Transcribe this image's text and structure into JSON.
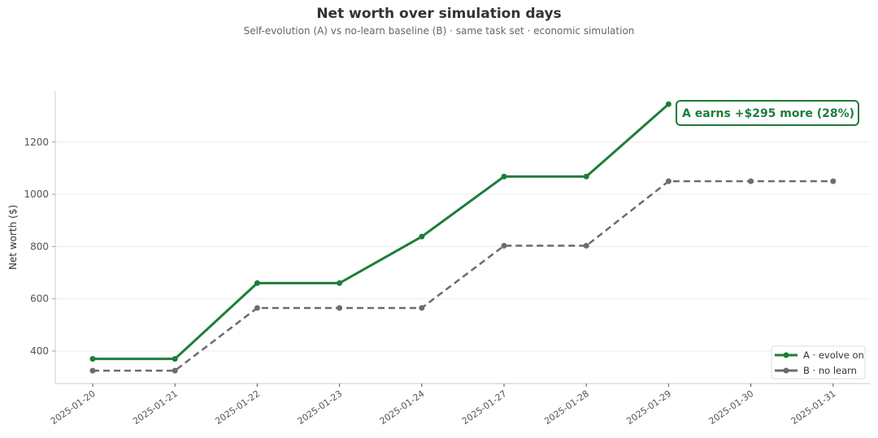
{
  "chart_data": {
    "type": "line",
    "title": "Net worth over simulation days",
    "subtitle": "Self-evolution (A) vs no-learn baseline (B) · same task set · economic simulation",
    "xlabel": "",
    "ylabel": "Net worth ($)",
    "categories": [
      "2025-01-20",
      "2025-01-21",
      "2025-01-22",
      "2025-01-23",
      "2025-01-24",
      "2025-01-27",
      "2025-01-28",
      "2025-01-29",
      "2025-01-30",
      "2025-01-31"
    ],
    "ylim": [
      275,
      1390
    ],
    "yticks": [
      400,
      600,
      800,
      1000,
      1200
    ],
    "grid": "horizontal",
    "legend_position": "bottom-right",
    "series": [
      {
        "name": "A · evolve on",
        "color": "#1e7d3a",
        "style": "solid",
        "values": [
          370,
          370,
          660,
          660,
          838,
          1068,
          1068,
          1345,
          null,
          null
        ]
      },
      {
        "name": "B · no learn",
        "color": "#6b6b73",
        "style": "dashed",
        "values": [
          325,
          325,
          565,
          565,
          565,
          803,
          803,
          1050,
          1050,
          1050
        ]
      }
    ],
    "annotation": "A earns +$295 more  (28%)"
  }
}
